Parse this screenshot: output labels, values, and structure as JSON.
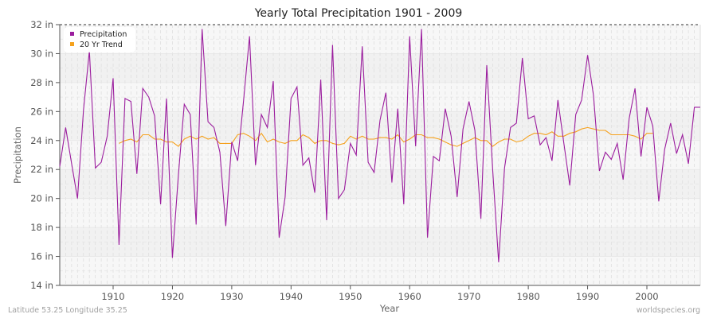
{
  "chart_data": {
    "type": "line",
    "title": "Yearly Total Precipitation 1901 - 2009",
    "xlabel": "Year",
    "ylabel": "Precipitation",
    "ylim": [
      14,
      32
    ],
    "xlim": [
      1901,
      2009
    ],
    "y_ticks": [
      "14 in",
      "16 in",
      "18 in",
      "20 in",
      "22 in",
      "24 in",
      "26 in",
      "28 in",
      "30 in",
      "32 in"
    ],
    "y_tick_values": [
      14,
      16,
      18,
      20,
      22,
      24,
      26,
      28,
      30,
      32
    ],
    "x_ticks": [
      "1910",
      "1920",
      "1930",
      "1940",
      "1950",
      "1960",
      "1970",
      "1980",
      "1990",
      "2000"
    ],
    "x_tick_values": [
      1910,
      1920,
      1930,
      1940,
      1950,
      1960,
      1970,
      1980,
      1990,
      2000
    ],
    "grid": true,
    "legend_position": "top-left",
    "series": [
      {
        "name": "Precipitation",
        "color": "#9b1d9e",
        "x_start": 1901,
        "values": [
          22.2,
          24.9,
          22.4,
          20.0,
          26.1,
          30.2,
          22.1,
          22.5,
          24.3,
          28.3,
          16.8,
          26.9,
          26.7,
          21.7,
          27.6,
          27.0,
          25.7,
          19.6,
          26.9,
          15.9,
          21.6,
          26.5,
          25.8,
          18.2,
          31.7,
          25.3,
          24.9,
          23.2,
          18.1,
          23.9,
          22.6,
          26.8,
          31.2,
          22.3,
          25.8,
          24.9,
          28.1,
          17.3,
          20.1,
          26.9,
          27.7,
          22.3,
          22.8,
          20.4,
          28.2,
          18.5,
          30.6,
          20.0,
          20.6,
          23.8,
          23.0,
          30.5,
          22.5,
          21.8,
          25.4,
          27.3,
          21.1,
          26.2,
          19.6,
          31.2,
          23.6,
          31.7,
          17.3,
          22.9,
          22.6,
          26.2,
          24.3,
          20.1,
          24.8,
          26.7,
          24.7,
          18.6,
          29.2,
          22.0,
          15.6,
          22.1,
          24.9,
          25.2,
          29.7,
          25.5,
          25.7,
          23.7,
          24.2,
          22.6,
          26.8,
          23.8,
          20.9,
          25.8,
          26.8,
          29.9,
          27.1,
          21.9,
          23.2,
          22.7,
          23.8,
          21.3,
          25.5,
          27.6,
          22.9,
          26.3,
          25.0,
          19.8,
          23.4,
          25.2,
          23.1,
          24.4,
          22.4,
          26.3,
          26.3
        ]
      },
      {
        "name": "20 Yr Trend",
        "color": "#f5a11c",
        "x_start": 1911,
        "values": [
          23.8,
          24.0,
          24.1,
          23.9,
          24.4,
          24.4,
          24.1,
          24.1,
          23.9,
          23.9,
          23.6,
          24.1,
          24.3,
          24.1,
          24.3,
          24.1,
          24.2,
          23.8,
          23.8,
          23.8,
          24.4,
          24.5,
          24.3,
          24.0,
          24.5,
          23.9,
          24.1,
          23.9,
          23.8,
          24.0,
          24.0,
          24.4,
          24.2,
          23.8,
          24.0,
          24.0,
          23.8,
          23.7,
          23.8,
          24.3,
          24.1,
          24.3,
          24.1,
          24.1,
          24.2,
          24.2,
          24.1,
          24.4,
          23.9,
          24.1,
          24.4,
          24.4,
          24.2,
          24.2,
          24.1,
          23.9,
          23.7,
          23.6,
          23.8,
          24.0,
          24.2,
          24.0,
          24.0,
          23.6,
          23.9,
          24.1,
          24.1,
          23.9,
          24.0,
          24.3,
          24.5,
          24.5,
          24.4,
          24.6,
          24.3,
          24.3,
          24.5,
          24.6,
          24.8,
          24.9,
          24.8,
          24.7,
          24.7,
          24.4,
          24.4,
          24.4,
          24.4,
          24.3,
          24.1,
          24.5,
          24.5
        ]
      }
    ]
  },
  "legend": {
    "items": [
      {
        "label": "Precipitation",
        "color": "#9b1d9e"
      },
      {
        "label": "20 Yr Trend",
        "color": "#f5a11c"
      }
    ]
  },
  "footer": {
    "location": "Latitude 53.25 Longitude 35.25",
    "source": "worldspecies.org"
  }
}
